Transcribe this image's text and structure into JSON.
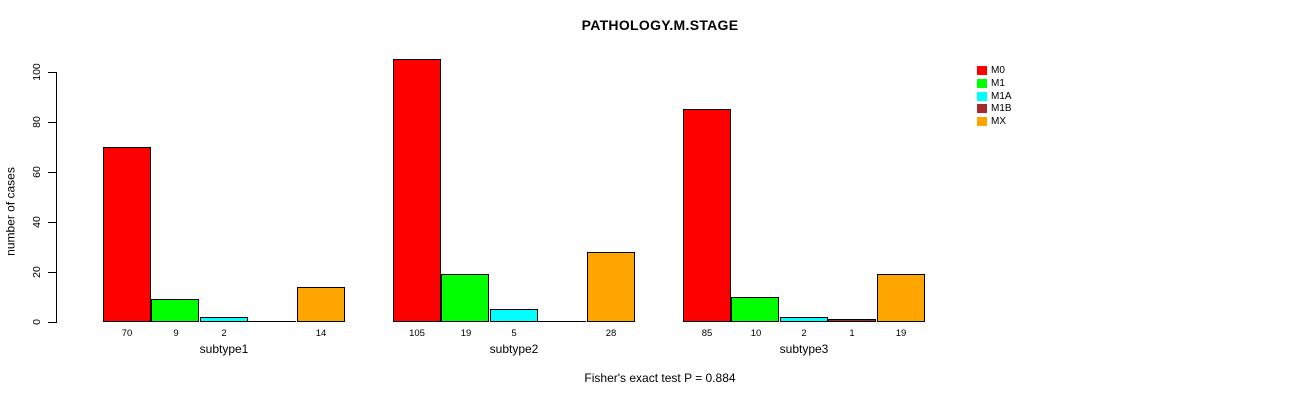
{
  "chart_data": {
    "type": "bar",
    "title": "PATHOLOGY.M.STAGE",
    "ylabel": "number of cases",
    "xlabel": "",
    "ylim": [
      0,
      105
    ],
    "yticks": [
      0,
      20,
      40,
      60,
      80,
      100
    ],
    "grid": false,
    "legend_position": "right",
    "categories": [
      "subtype1",
      "subtype2",
      "subtype3"
    ],
    "series": [
      {
        "name": "M0",
        "color": "#FF0000",
        "values": [
          70,
          105,
          85
        ]
      },
      {
        "name": "M1",
        "color": "#00FF00",
        "values": [
          9,
          19,
          10
        ]
      },
      {
        "name": "M1A",
        "color": "#00FFFF",
        "values": [
          2,
          5,
          2
        ]
      },
      {
        "name": "M1B",
        "color": "#A52A2A",
        "values": [
          0,
          0,
          1
        ]
      },
      {
        "name": "MX",
        "color": "#FFA500",
        "values": [
          14,
          28,
          19
        ]
      }
    ],
    "bar_value_labels": {
      "subtype1": [
        "70",
        "9",
        "2",
        "",
        "14"
      ],
      "subtype2": [
        "105",
        "19",
        "5",
        "",
        "28"
      ],
      "subtype3": [
        "85",
        "10",
        "2",
        "1",
        "19"
      ]
    },
    "annotation": "Fisher's exact test P = 0.884"
  }
}
